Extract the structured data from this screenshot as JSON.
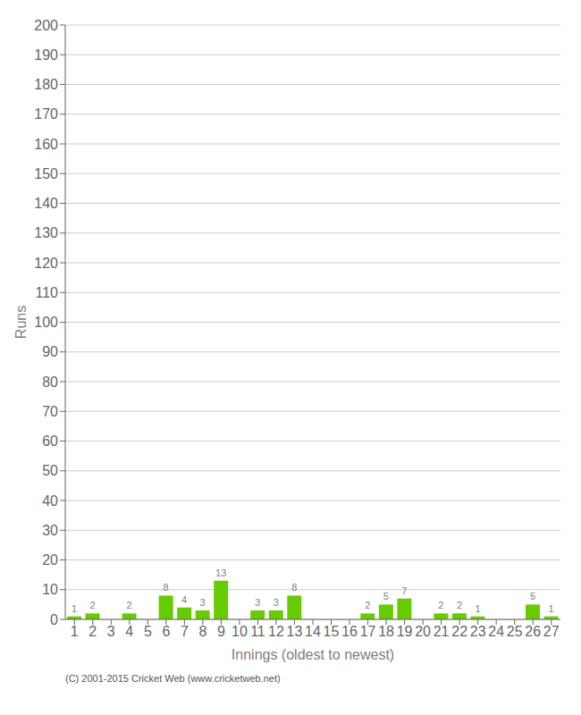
{
  "chart_data": {
    "type": "bar",
    "categories": [
      "1",
      "2",
      "3",
      "4",
      "5",
      "6",
      "7",
      "8",
      "9",
      "10",
      "11",
      "12",
      "13",
      "14",
      "15",
      "16",
      "17",
      "18",
      "19",
      "20",
      "21",
      "22",
      "23",
      "24",
      "25",
      "26",
      "27"
    ],
    "values": [
      1,
      2,
      0,
      2,
      0,
      8,
      4,
      3,
      13,
      0,
      3,
      3,
      8,
      0,
      0,
      0,
      2,
      5,
      7,
      0,
      2,
      2,
      1,
      0,
      0,
      5,
      1
    ],
    "color": "#66cc00",
    "xlabel": "Innings (oldest to newest)",
    "ylabel": "Runs",
    "ylim": [
      0,
      200
    ],
    "yticks": [
      0,
      10,
      20,
      30,
      40,
      50,
      60,
      70,
      80,
      90,
      100,
      110,
      120,
      130,
      140,
      150,
      160,
      170,
      180,
      190,
      200
    ],
    "grid": true,
    "data_labels": true,
    "annotations": [
      "(C) 2001-2015 Cricket Web (www.cricketweb.net)"
    ]
  }
}
